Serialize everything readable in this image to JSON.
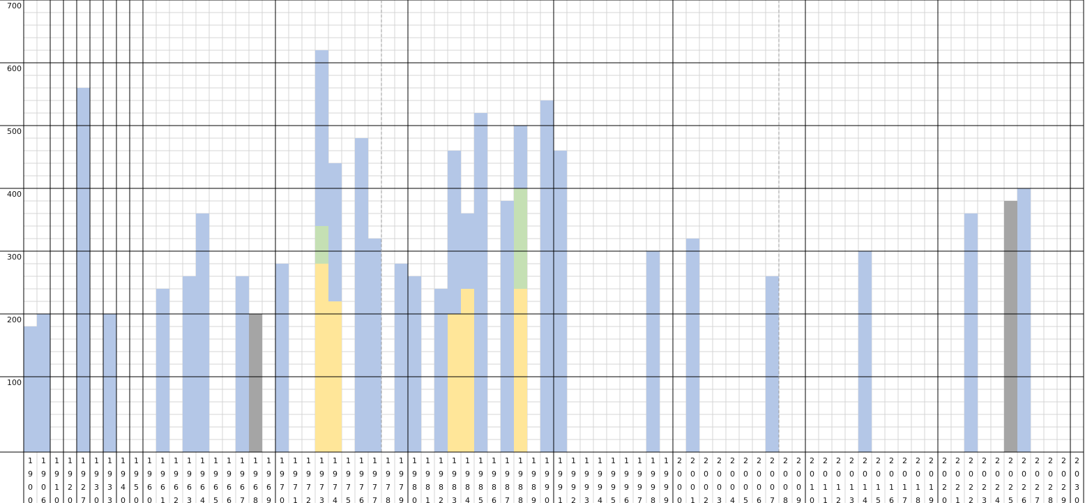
{
  "chart_data": {
    "type": "bar",
    "categories": [
      "1900",
      "1906",
      "1910",
      "1920",
      "1927",
      "1930",
      "1933",
      "1940",
      "1950",
      "1960",
      "1961",
      "1962",
      "1963",
      "1964",
      "1965",
      "1966",
      "1967",
      "1968",
      "1969",
      "1970",
      "1971",
      "1972",
      "1973",
      "1974",
      "1975",
      "1976",
      "1977",
      "1978",
      "1979",
      "1980",
      "1981",
      "1982",
      "1983",
      "1984",
      "1985",
      "1986",
      "1987",
      "1988",
      "1989",
      "1990",
      "1991",
      "1992",
      "1993",
      "1994",
      "1995",
      "1996",
      "1997",
      "1998",
      "1999",
      "2000",
      "2001",
      "2002",
      "2003",
      "2004",
      "2005",
      "2006",
      "2007",
      "2008",
      "2009",
      "2010",
      "2011",
      "2012",
      "2013",
      "2014",
      "2015",
      "2016",
      "2017",
      "2018",
      "2019",
      "2020",
      "2021",
      "2022",
      "2023",
      "2024",
      "2025",
      "2026",
      "2027",
      "2028",
      "2029",
      "2030"
    ],
    "series": [
      {
        "color": "#ffe699",
        "values": [
          null,
          null,
          null,
          null,
          null,
          null,
          null,
          null,
          null,
          null,
          null,
          null,
          null,
          null,
          null,
          null,
          null,
          null,
          null,
          null,
          null,
          null,
          280,
          220,
          null,
          null,
          null,
          null,
          null,
          null,
          null,
          null,
          200,
          240,
          null,
          null,
          null,
          240,
          null,
          null,
          null,
          null,
          null,
          null,
          null,
          null,
          null,
          null,
          null,
          null,
          null,
          null,
          null,
          null,
          null,
          null,
          null,
          null,
          null,
          null,
          null,
          null,
          null,
          null,
          null,
          null,
          null,
          null,
          null,
          null,
          null,
          null,
          null,
          null,
          null,
          null,
          null,
          null,
          null,
          null
        ]
      },
      {
        "color": "#c5e0b4",
        "values": [
          null,
          null,
          null,
          null,
          null,
          null,
          null,
          null,
          null,
          null,
          null,
          null,
          null,
          null,
          null,
          null,
          null,
          null,
          null,
          null,
          null,
          null,
          60,
          null,
          null,
          null,
          null,
          null,
          null,
          null,
          null,
          null,
          null,
          null,
          null,
          null,
          null,
          160,
          null,
          null,
          null,
          null,
          null,
          null,
          null,
          null,
          null,
          null,
          null,
          null,
          null,
          null,
          null,
          null,
          null,
          null,
          null,
          null,
          null,
          null,
          null,
          null,
          null,
          null,
          null,
          null,
          null,
          null,
          null,
          null,
          null,
          null,
          null,
          null,
          null,
          null,
          null,
          null,
          null,
          null
        ]
      },
      {
        "color": "#a5a5a5",
        "values": [
          null,
          null,
          null,
          null,
          null,
          null,
          null,
          null,
          null,
          null,
          null,
          null,
          null,
          null,
          null,
          null,
          null,
          200,
          null,
          null,
          null,
          null,
          null,
          null,
          null,
          null,
          null,
          null,
          null,
          null,
          null,
          null,
          null,
          null,
          null,
          null,
          null,
          null,
          null,
          null,
          null,
          null,
          null,
          null,
          null,
          null,
          null,
          null,
          null,
          null,
          null,
          null,
          null,
          null,
          null,
          null,
          null,
          null,
          null,
          null,
          null,
          null,
          null,
          null,
          null,
          null,
          null,
          null,
          null,
          null,
          null,
          null,
          null,
          null,
          380,
          null,
          null,
          null,
          null,
          null
        ]
      },
      {
        "color": "#b4c7e7",
        "values": [
          180,
          200,
          null,
          null,
          560,
          null,
          200,
          null,
          null,
          null,
          240,
          null,
          260,
          360,
          null,
          null,
          260,
          null,
          null,
          280,
          null,
          null,
          280,
          220,
          null,
          480,
          320,
          null,
          280,
          260,
          null,
          240,
          260,
          120,
          520,
          null,
          380,
          100,
          null,
          540,
          460,
          null,
          null,
          null,
          null,
          null,
          null,
          300,
          null,
          null,
          320,
          null,
          null,
          null,
          null,
          null,
          260,
          null,
          null,
          null,
          null,
          null,
          null,
          300,
          null,
          null,
          null,
          null,
          null,
          null,
          null,
          360,
          null,
          null,
          null,
          400,
          null,
          null,
          null,
          null
        ]
      }
    ],
    "stacked": true,
    "ylim": [
      -20,
      700
    ],
    "yticks": [
      100,
      200,
      300,
      400,
      500,
      600,
      700
    ],
    "grid": true
  }
}
